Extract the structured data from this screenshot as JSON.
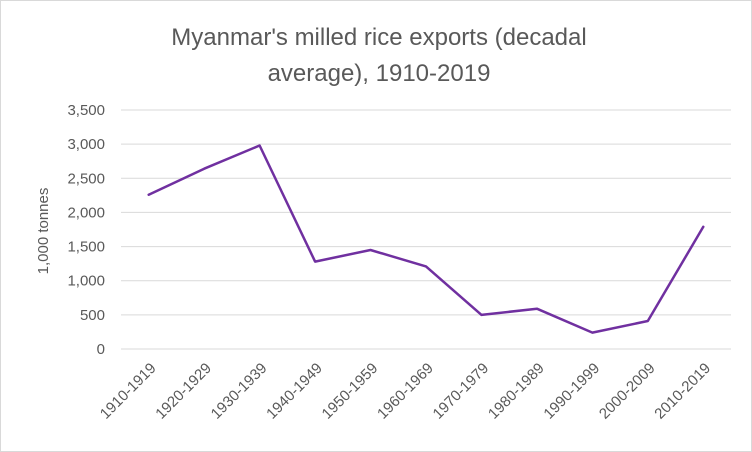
{
  "chart_data": {
    "type": "line",
    "title_lines": [
      "Myanmar's milled rice exports (decadal",
      "average), 1910-2019"
    ],
    "xlabel": "",
    "ylabel": "1,000 tonnes",
    "categories": [
      "1910-1919",
      "1920-1929",
      "1930-1939",
      "1940-1949",
      "1950-1959",
      "1960-1969",
      "1970-1979",
      "1980-1989",
      "1990-1999",
      "2000-2009",
      "2010-2019"
    ],
    "series": [
      {
        "values": [
          2260,
          2640,
          2980,
          1280,
          1450,
          1210,
          500,
          590,
          240,
          410,
          1790
        ]
      }
    ],
    "ylim": [
      0,
      3500
    ],
    "yticks": [
      0,
      500,
      1000,
      1500,
      2000,
      2500,
      3000,
      3500
    ],
    "ytick_labels": [
      "0",
      "500",
      "1,000",
      "1,500",
      "2,000",
      "2,500",
      "3,000",
      "3,500"
    ],
    "grid": true,
    "legend": "none",
    "colors": {
      "line": "#7030a0",
      "grid": "#d9d9d9",
      "text": "#595959"
    }
  }
}
